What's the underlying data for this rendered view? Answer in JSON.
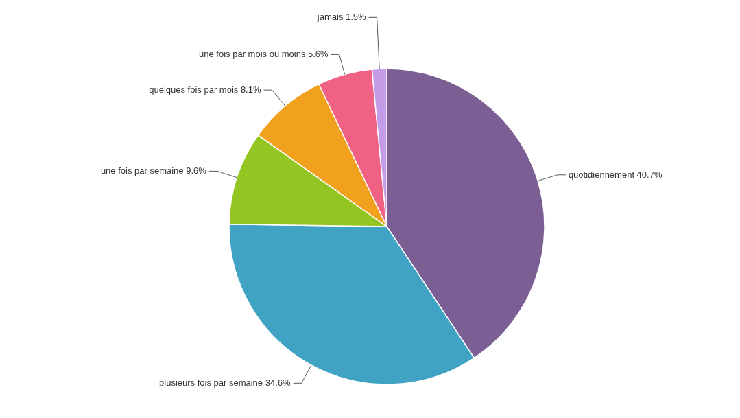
{
  "chart_data": {
    "type": "pie",
    "categories": [
      "quotidiennement",
      "plusieurs fois par semaine",
      "une fois par semaine",
      "quelques fois par mois",
      "une fois par mois ou moins",
      "jamais"
    ],
    "values": [
      40.7,
      34.6,
      9.6,
      8.1,
      5.6,
      1.5
    ],
    "value_labels": [
      "40.7%",
      "34.6%",
      "9.6%",
      "8.1%",
      "5.6%",
      "1.5%"
    ],
    "colors": [
      "#7b5e93",
      "#40a3c4",
      "#94c623",
      "#f2a11e",
      "#ef6283",
      "#c39be6"
    ],
    "legend": false
  }
}
